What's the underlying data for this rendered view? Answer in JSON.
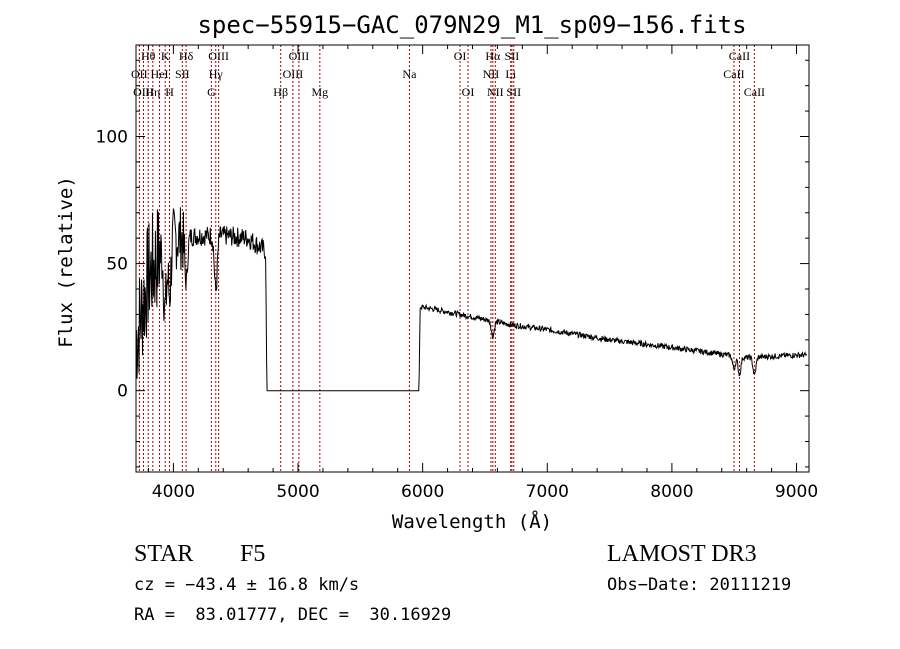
{
  "chart_data": {
    "type": "line",
    "title": "spec−55915−GAC_079N29_M1_sp09−156.fits",
    "xlabel": "Wavelength (Å)",
    "ylabel": "Flux (relative)",
    "xlim": [
      3700,
      9100
    ],
    "ylim": [
      -32,
      136
    ],
    "x_ticks": [
      4000,
      5000,
      6000,
      7000,
      8000,
      9000
    ],
    "x_tick_labels": [
      "4000",
      "5000",
      "6000",
      "7000",
      "8000",
      "9000"
    ],
    "y_ticks": [
      0,
      50,
      100
    ],
    "y_tick_labels": [
      "0",
      "50",
      "100"
    ],
    "series": [
      {
        "name": "flux",
        "color": "#000000",
        "anchors": [
          [
            3700,
            20
          ],
          [
            3800,
            45
          ],
          [
            3900,
            55
          ],
          [
            4000,
            60
          ],
          [
            4200,
            61
          ],
          [
            4400,
            61
          ],
          [
            4600,
            60
          ],
          [
            4740,
            55
          ],
          [
            4750,
            0
          ],
          [
            5970,
            0
          ],
          [
            5980,
            33
          ],
          [
            6100,
            32
          ],
          [
            6300,
            30
          ],
          [
            6500,
            28
          ],
          [
            6700,
            26
          ],
          [
            7000,
            24
          ],
          [
            7500,
            20
          ],
          [
            8000,
            17
          ],
          [
            8300,
            15
          ],
          [
            8600,
            13
          ],
          [
            9000,
            14
          ]
        ],
        "absorption_lines": [
          [
            3934,
            25
          ],
          [
            3969,
            20
          ],
          [
            4102,
            18
          ],
          [
            4340,
            22
          ],
          [
            4861,
            10
          ],
          [
            5890,
            3
          ],
          [
            6563,
            6
          ],
          [
            8498,
            5
          ],
          [
            8542,
            7
          ],
          [
            8662,
            7
          ]
        ]
      }
    ],
    "line_markers": [
      {
        "label": "Hθ",
        "x": 3798,
        "row": 0
      },
      {
        "label": "OII",
        "x": 3727,
        "row": 1
      },
      {
        "label": "OIII",
        "x": 3760,
        "row": 2
      },
      {
        "label": "K",
        "x": 3934,
        "row": 0
      },
      {
        "label": "HeI",
        "x": 3889,
        "row": 1
      },
      {
        "label": "Hη",
        "x": 3835,
        "row": 2
      },
      {
        "label": "SII",
        "x": 4072,
        "row": 1
      },
      {
        "label": "H",
        "x": 3969,
        "row": 2
      },
      {
        "label": "Hδ",
        "x": 4102,
        "row": 0
      },
      {
        "label": "OIII",
        "x": 4363,
        "row": 0
      },
      {
        "label": "Hγ",
        "x": 4340,
        "row": 1
      },
      {
        "label": "G",
        "x": 4305,
        "row": 2
      },
      {
        "label": "OIII",
        "x": 5007,
        "row": 0
      },
      {
        "label": "OIII",
        "x": 4959,
        "row": 1
      },
      {
        "label": "Hβ",
        "x": 4861,
        "row": 2
      },
      {
        "label": "Mg",
        "x": 5175,
        "row": 2
      },
      {
        "label": "Na",
        "x": 5894,
        "row": 1
      },
      {
        "label": "OI",
        "x": 6300,
        "row": 0
      },
      {
        "label": "OI",
        "x": 6364,
        "row": 2
      },
      {
        "label": "Hα",
        "x": 6563,
        "row": 0
      },
      {
        "label": "NII",
        "x": 6548,
        "row": 1
      },
      {
        "label": "NII",
        "x": 6583,
        "row": 2
      },
      {
        "label": "SII",
        "x": 6716,
        "row": 0
      },
      {
        "label": "Li",
        "x": 6707,
        "row": 1
      },
      {
        "label": "SII",
        "x": 6731,
        "row": 2
      },
      {
        "label": "CaII",
        "x": 8542,
        "row": 0
      },
      {
        "label": "CaII",
        "x": 8498,
        "row": 1
      },
      {
        "label": "CaII",
        "x": 8662,
        "row": 2
      }
    ],
    "marker_color": "#aa0000",
    "annotations": {
      "object_class": "STAR",
      "subclass": "F5",
      "survey": "LAMOST DR3",
      "cz": "cz = −43.4 ± 16.8 km/s",
      "obs_date": "Obs−Date: 20111219",
      "coords": "RA =  83.01777, DEC =  30.16929"
    }
  }
}
